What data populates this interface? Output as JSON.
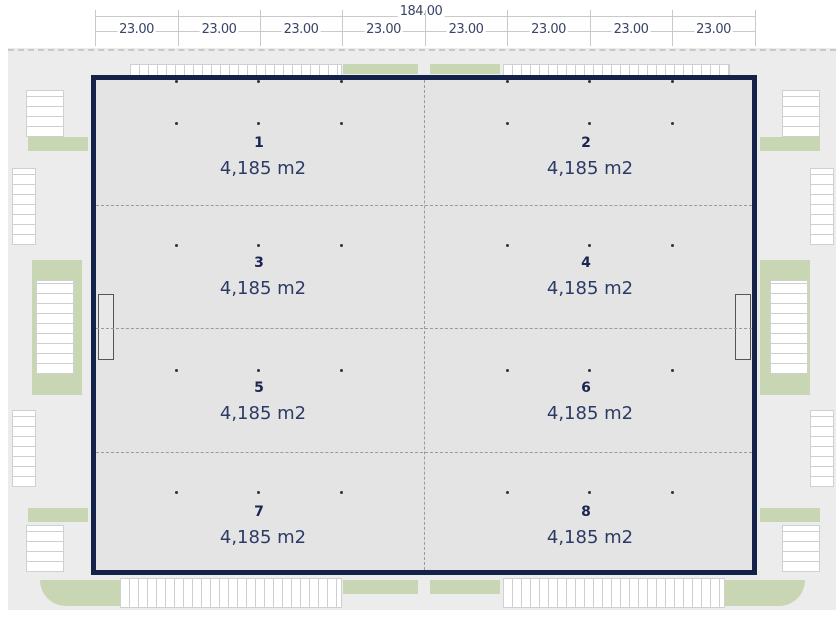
{
  "dimensions": {
    "total": "184.00",
    "bays": [
      "23.00",
      "23.00",
      "23.00",
      "23.00",
      "23.00",
      "23.00",
      "23.00",
      "23.00"
    ]
  },
  "units": [
    {
      "number": "1",
      "area": "4,185 m2"
    },
    {
      "number": "2",
      "area": "4,185 m2"
    },
    {
      "number": "3",
      "area": "4,185 m2"
    },
    {
      "number": "4",
      "area": "4,185 m2"
    },
    {
      "number": "5",
      "area": "4,185 m2"
    },
    {
      "number": "6",
      "area": "4,185 m2"
    },
    {
      "number": "7",
      "area": "4,185 m2"
    },
    {
      "number": "8",
      "area": "4,185 m2"
    }
  ],
  "colors": {
    "building_outline": "#14224a",
    "text": "#2c3a66",
    "landscape": "#c9d6b4"
  }
}
